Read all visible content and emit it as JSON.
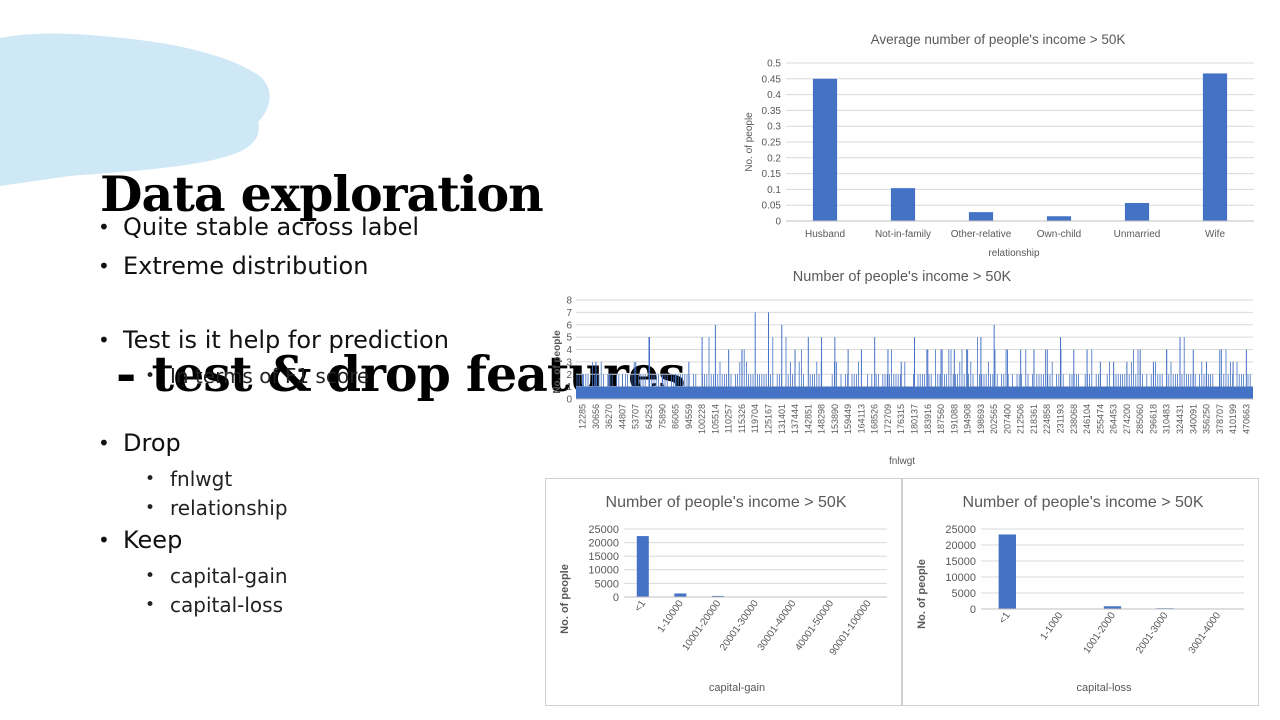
{
  "slide": {
    "title_line1": "Data exploration",
    "title_line2": " - test & drop features",
    "bullets": [
      {
        "level": 1,
        "text": "Quite stable across label"
      },
      {
        "level": 1,
        "text": "Extreme distribution"
      },
      {
        "level": 0,
        "text": ""
      },
      {
        "level": 1,
        "text": "Test is it help for prediction"
      },
      {
        "level": 2,
        "text": "In terms of F1 score"
      },
      {
        "level": 0,
        "text": ""
      },
      {
        "level": 1,
        "text": "Drop"
      },
      {
        "level": 2,
        "text": "fnlwgt"
      },
      {
        "level": 2,
        "text": "relationship"
      },
      {
        "level": 1,
        "text": "Keep"
      },
      {
        "level": 2,
        "text": "capital-gain"
      },
      {
        "level": 2,
        "text": "capital-loss"
      }
    ],
    "accent_color": "#4472C4",
    "brush_color": "#cfe8f5"
  },
  "chart_data": [
    {
      "type": "bar",
      "title": "Average number of people's income > 50K",
      "xlabel": "relationship",
      "ylabel": "No. of people",
      "ylim": [
        0,
        0.5
      ],
      "yticks": [
        "0",
        "0.05",
        "0.1",
        "0.15",
        "0.2",
        "0.25",
        "0.3",
        "0.35",
        "0.4",
        "0.45",
        "0.5"
      ],
      "categories": [
        "Husband",
        "Not-in-family",
        "Other-relative",
        "Own-child",
        "Unmarried",
        "Wife"
      ],
      "values": [
        0.45,
        0.104,
        0.028,
        0.015,
        0.057,
        0.467
      ],
      "grid": true
    },
    {
      "type": "bar",
      "title": "Number of people's income > 50K",
      "xlabel": "fnlwgt",
      "ylabel": "No. of people",
      "ylim": [
        0,
        8
      ],
      "yticks": [
        "0",
        "1",
        "2",
        "3",
        "4",
        "5",
        "6",
        "7",
        "8"
      ],
      "categories": [
        "12285",
        "30656",
        "36270",
        "44807",
        "53707",
        "64253",
        "75890",
        "86065",
        "94559",
        "100228",
        "105514",
        "110257",
        "115326",
        "119704",
        "125167",
        "131401",
        "137444",
        "142851",
        "148298",
        "153890",
        "159449",
        "164113",
        "168526",
        "172709",
        "176315",
        "180137",
        "183916",
        "187560",
        "191088",
        "194908",
        "198693",
        "202565",
        "207400",
        "212506",
        "218361",
        "224858",
        "231193",
        "238068",
        "246104",
        "255474",
        "264453",
        "274200",
        "285060",
        "296618",
        "310483",
        "324431",
        "340091",
        "356250",
        "378707",
        "410199",
        "470663"
      ],
      "values": [
        2,
        3,
        2,
        2,
        3,
        5,
        2,
        2,
        3,
        5,
        6,
        4,
        4,
        7,
        7,
        6,
        4,
        5,
        5,
        5,
        4,
        4,
        5,
        4,
        3,
        5,
        4,
        4,
        4,
        4,
        5,
        6,
        4,
        4,
        4,
        4,
        5,
        4,
        4,
        3,
        3,
        3,
        4,
        3,
        4,
        5,
        4,
        3,
        4,
        3,
        4
      ],
      "note": "approximate per-label maxima; dense histogram with baseline of 1",
      "grid": true
    },
    {
      "type": "bar",
      "title": "Number of people's income > 50K",
      "xlabel": "capital-gain",
      "ylabel": "No. of people",
      "ylim": [
        0,
        25000
      ],
      "yticks": [
        "0",
        "5000",
        "10000",
        "15000",
        "20000",
        "25000"
      ],
      "categories": [
        "<1",
        "1-10000",
        "10001-20000",
        "20001-30000",
        "30001-40000",
        "40001-50000",
        "90001-100000"
      ],
      "values": [
        22400,
        1300,
        400,
        30,
        10,
        5,
        150
      ],
      "grid": true
    },
    {
      "type": "bar",
      "title": "Number of people's income > 50K",
      "xlabel": "capital-loss",
      "ylabel": "No. of people",
      "ylim": [
        0,
        25000
      ],
      "yticks": [
        "0",
        "5000",
        "10000",
        "15000",
        "20000",
        "25000"
      ],
      "categories": [
        "<1",
        "1-1000",
        "1001-2000",
        "2001-3000",
        "3001-4000"
      ],
      "values": [
        23300,
        5,
        850,
        250,
        5
      ],
      "grid": true
    }
  ]
}
